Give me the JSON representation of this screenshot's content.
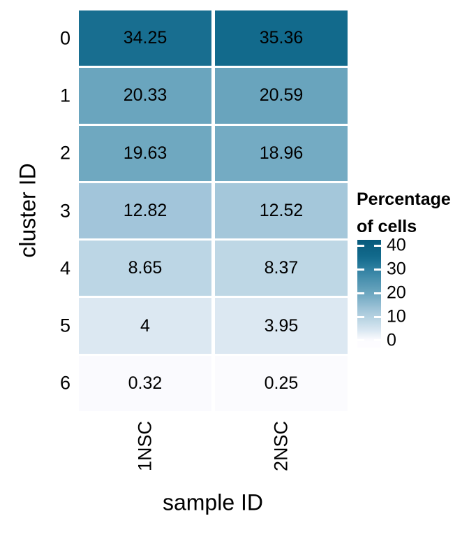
{
  "chart_data": {
    "type": "heatmap",
    "title": "",
    "xlabel": "sample ID",
    "ylabel": "cluster ID",
    "x_categories": [
      "1NSC",
      "2NSC"
    ],
    "y_categories": [
      "0",
      "1",
      "2",
      "3",
      "4",
      "5",
      "6"
    ],
    "values": [
      [
        34.25,
        35.36
      ],
      [
        20.33,
        20.59
      ],
      [
        19.63,
        18.96
      ],
      [
        12.82,
        12.52
      ],
      [
        8.65,
        8.37
      ],
      [
        4,
        3.95
      ],
      [
        0.32,
        0.25
      ]
    ],
    "cell_labels": [
      [
        "34.25",
        "35.36"
      ],
      [
        "20.33",
        "20.59"
      ],
      [
        "19.63",
        "18.96"
      ],
      [
        "12.82",
        "12.52"
      ],
      [
        "8.65",
        "8.37"
      ],
      [
        "4",
        "3.95"
      ],
      [
        "0.32",
        "0.25"
      ]
    ],
    "legend": {
      "title_line1": "Percentage",
      "title_line2": "of cells",
      "ticks": [
        40,
        30,
        20,
        10,
        0
      ],
      "bar_value_top": 42.5,
      "bar_value_bottom": -3
    },
    "colors": {
      "gradient_stops": [
        {
          "v": 0,
          "c": "#fdfcff"
        },
        {
          "v": 4,
          "c": "#dce8f2"
        },
        {
          "v": 8.5,
          "c": "#bdd7e5"
        },
        {
          "v": 12.7,
          "c": "#a3c6da"
        },
        {
          "v": 20,
          "c": "#6ca6bf"
        },
        {
          "v": 30,
          "c": "#3181a2"
        },
        {
          "v": 35,
          "c": "#136b8d"
        },
        {
          "v": 43,
          "c": "#07597b"
        }
      ],
      "cell_text": "#000000",
      "axis_text": "#000000",
      "background": "#ffffff",
      "tick_dash": "#ffffff"
    },
    "grid": false,
    "legend_position": "right"
  }
}
